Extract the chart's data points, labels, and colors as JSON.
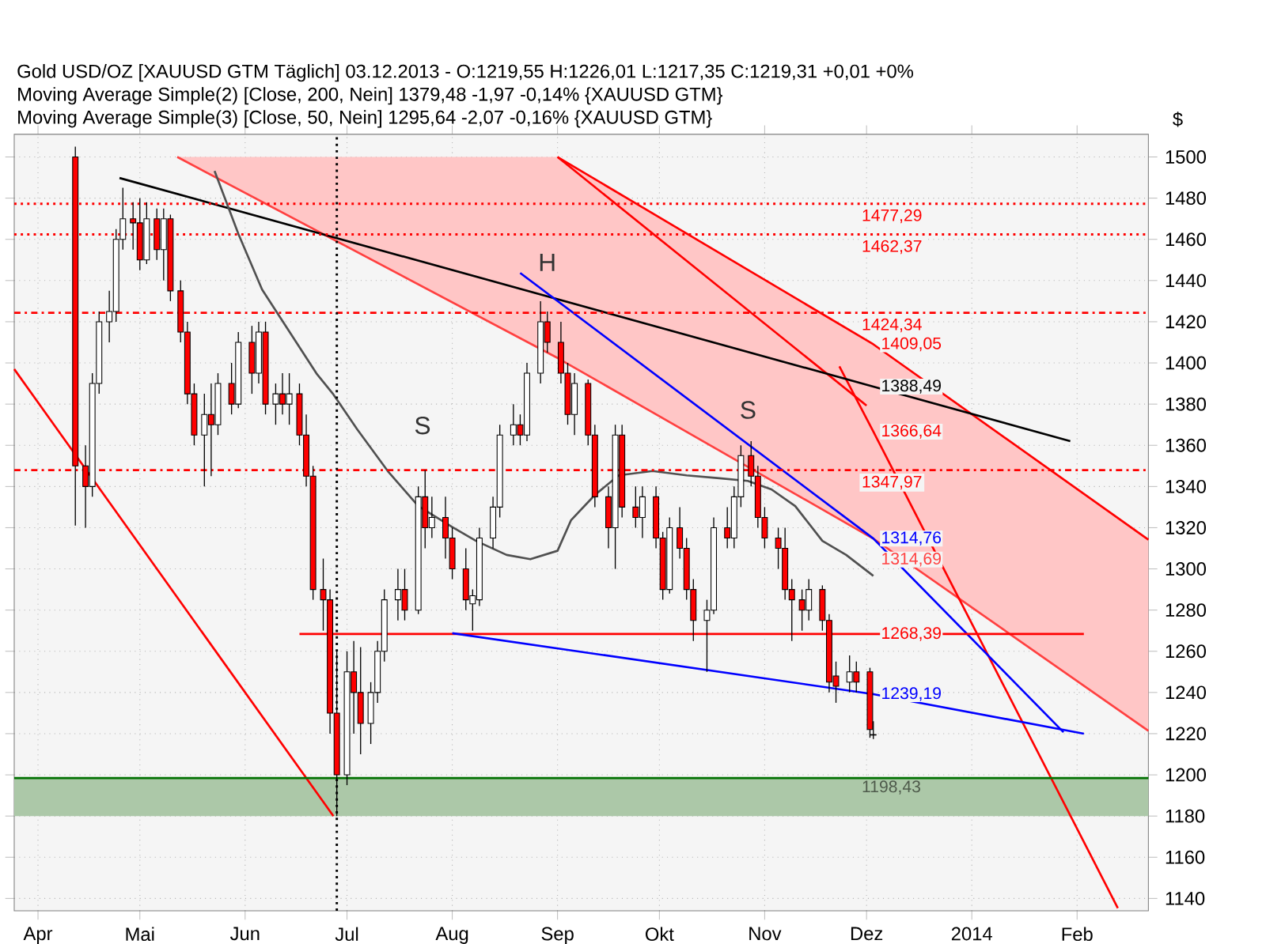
{
  "chart_data": {
    "type": "candlestick",
    "title": "Gold USD/OZ [XAUUSD GTM  Täglich] 03.12.2013 - O:1219,55 H:1226,01 L:1217,35 C:1219,31 +0,01 +0%",
    "ylabel": "$",
    "annotations": [
      "Moving Average Simple(2) [Close, 200, Nein] 1379,48 -1,97 -0,14% {XAUUSD GTM}",
      "Moving Average Simple(3) [Close, 50, Nein] 1295,64 -2,07 -0,16% {XAUUSD GTM}",
      "S",
      "H",
      "S"
    ],
    "xlim": [
      "2013-03-25",
      "2014-02-22"
    ],
    "ylim": [
      1134,
      1511
    ],
    "xticks": [
      {
        "value": "2013-04-01",
        "label": "Apr"
      },
      {
        "value": "2013-05-01",
        "label": "Mai"
      },
      {
        "value": "2013-06-01",
        "label": "Jun"
      },
      {
        "value": "2013-07-01",
        "label": "Jul"
      },
      {
        "value": "2013-08-01",
        "label": "Aug"
      },
      {
        "value": "2013-09-01",
        "label": "Sep"
      },
      {
        "value": "2013-10-01",
        "label": "Okt"
      },
      {
        "value": "2013-11-01",
        "label": "Nov"
      },
      {
        "value": "2013-12-01",
        "label": "Dez"
      },
      {
        "value": "2014-01-01",
        "label": "2014"
      },
      {
        "value": "2014-02-01",
        "label": "Feb"
      }
    ],
    "yticks": [
      1140,
      1160,
      1180,
      1200,
      1220,
      1240,
      1260,
      1280,
      1300,
      1320,
      1340,
      1360,
      1380,
      1400,
      1420,
      1440,
      1460,
      1480,
      1500
    ],
    "grid": true,
    "ref_lines": [
      {
        "axis": "y",
        "value": 1477.29,
        "label": "1477,29",
        "color": "#ff0000",
        "line_style": "dotted"
      },
      {
        "axis": "y",
        "value": 1462.37,
        "label": "1462,37",
        "color": "#ff0000",
        "line_style": "dotted"
      },
      {
        "axis": "y",
        "value": 1424.34,
        "label": "1424,34",
        "color": "#ff0000",
        "line_style": "dashed"
      },
      {
        "axis": "y",
        "value": 1347.97,
        "label": "1347,97",
        "color": "#ff0000",
        "line_style": "dashed"
      },
      {
        "axis": "y",
        "value": 1198.43,
        "color": "#007000",
        "line_style": "solid"
      },
      {
        "axis": "x",
        "value": "2013-06-28",
        "color": "#000000",
        "line_style": "dotted"
      }
    ],
    "bands": [
      {
        "axis": "y",
        "from": 1180,
        "to": 1198.43,
        "label": "1198,43",
        "color": "#acc8a8"
      }
    ],
    "series": [
      {
        "type": "line",
        "color": "#ff4040",
        "x": [
          "2013-05-12",
          "2013-09-01",
          "2013-12-03",
          "2014-02-22"
        ],
        "values": [
          1500,
          1402.4,
          1314.69,
          1221.4
        ],
        "lower": [
          1500,
          1402.4,
          1314.69,
          1221.4
        ],
        "upper": [
          1500,
          1500,
          1409.05,
          1314.2
        ],
        "value_labels": [
          null,
          null,
          "1314,69",
          null
        ]
      },
      {
        "type": "line",
        "color": "#ff0000",
        "x": [
          "2013-09-01",
          "2013-12-03",
          "2014-02-22"
        ],
        "values": [
          1500,
          1409.05,
          1314.2
        ],
        "value_labels": [
          null,
          "1409,05",
          null
        ]
      },
      {
        "type": "line",
        "color": "#ff0000",
        "x": [
          "2013-09-01",
          "2013-12-01"
        ],
        "values": [
          1500,
          1379.3
        ]
      },
      {
        "type": "line",
        "color": "#ff0000",
        "x": [
          "2013-11-23",
          "2013-12-03",
          "2014-02-13"
        ],
        "values": [
          1398.3,
          1366.64,
          1135.3
        ],
        "value_labels": [
          null,
          "1366,64",
          null
        ]
      },
      {
        "type": "line",
        "color": "#ff0000",
        "x": [
          "2013-03-25",
          "2013-06-27"
        ],
        "values": [
          1397,
          1180
        ]
      },
      {
        "type": "line",
        "color": "#000000",
        "x": [
          "2013-04-25",
          "2013-12-03",
          "2014-01-30"
        ],
        "values": [
          1489.8,
          1388.49,
          1362
        ],
        "value_labels": [
          null,
          "1388,49",
          null
        ]
      },
      {
        "type": "line",
        "color": "#0000ff",
        "x": [
          "2013-08-21",
          "2013-12-03",
          "2014-01-28"
        ],
        "values": [
          1443.7,
          1314.76,
          1220.7
        ],
        "value_labels": [
          null,
          "1314,76",
          null
        ]
      },
      {
        "type": "line",
        "color": "#ff0000",
        "x": [
          "2013-06-17",
          "2013-12-03",
          "2014-02-03"
        ],
        "values": [
          1268.39,
          1268.39,
          1268.39
        ],
        "value_labels": [
          null,
          "1268,39",
          null
        ]
      },
      {
        "type": "line",
        "color": "#0000ff",
        "x": [
          "2013-08-01",
          "2013-12-03",
          "2014-02-03"
        ],
        "values": [
          1268.8,
          1239.19,
          1220
        ],
        "value_labels": [
          null,
          "1239,19",
          null
        ]
      },
      {
        "type": "line",
        "color": "#505050",
        "x": [
          "2013-05-23",
          "2013-05-30",
          "2013-06-06",
          "2013-06-14",
          "2013-06-22",
          "2013-06-27",
          "2013-07-04",
          "2013-07-13",
          "2013-07-22",
          "2013-08-01",
          "2013-08-08",
          "2013-08-17",
          "2013-08-24",
          "2013-09-01",
          "2013-09-05",
          "2013-09-12",
          "2013-09-19",
          "2013-09-29",
          "2013-10-09",
          "2013-10-18",
          "2013-10-27",
          "2013-11-03",
          "2013-11-10",
          "2013-11-18",
          "2013-11-25",
          "2013-12-03"
        ],
        "values": [
          1493.2,
          1462.7,
          1435.6,
          1415.3,
          1394.9,
          1384.7,
          1367.8,
          1347.5,
          1330.5,
          1320.3,
          1313.6,
          1306.8,
          1304.7,
          1308.8,
          1323.7,
          1335.9,
          1345.4,
          1347.5,
          1345.4,
          1344.1,
          1342.7,
          1338.6,
          1330.5,
          1313.6,
          1306.8,
          1296.6
        ]
      },
      {
        "colors": [
          "#ff0000",
          "#ff0000",
          "#ffffff",
          "#ffffff",
          "#ffffff",
          "#ffffff",
          "#ffffff",
          "#ff0000",
          "#ff0000",
          "#ffffff",
          "#ff0000",
          "#ffffff",
          "#ff0000",
          "#ff0000",
          "#ff0000",
          "#ff0000",
          "#ffffff",
          "#ff0000",
          "#ffffff",
          "#ff0000",
          "#ffffff",
          "#ff0000",
          "#ffffff",
          "#ff0000",
          "#ffffff",
          "#ff0000",
          "#ffffff",
          "#ff0000",
          "#ff0000",
          "#ff0000",
          "#ff0000",
          "#ff0000",
          "#ff0000",
          "#ffffff",
          "#ff0000",
          "#ff0000",
          "#ffffff",
          "#ffffff",
          "#ffffff",
          "#ffffff",
          "#ff0000",
          "#ffffff",
          "#ff0000",
          "#ffffff",
          "#ff0000",
          "#ff0000",
          "#ff0000",
          "#ffffff",
          "#ffffff",
          "#ffffff",
          "#ffffff",
          "#ffffff",
          "#ff0000",
          "#ffffff",
          "#ffffff",
          "#ff0000",
          "#ff0000",
          "#ff0000",
          "#ffffff",
          "#ff0000",
          "#ff0000",
          "#ff0000",
          "#ffffff",
          "#ff0000",
          "#ff0000",
          "#ffffff",
          "#ff0000",
          "#ff0000",
          "#ffffff",
          "#ff0000",
          "#ff0000",
          "#ff0000",
          "#ffffff",
          "#ffffff",
          "#ff0000",
          "#ffffff",
          "#ffffff",
          "#ff0000",
          "#ff0000",
          "#ff0000",
          "#ff0000",
          "#ff0000",
          "#ff0000",
          "#ff0000",
          "#ffffff",
          "#ff0000",
          "#ff0000",
          "#ff0000",
          "#ffffff",
          "#ff0000",
          "#ff0000",
          "#ff0000"
        ],
        "x": [
          "2013-04-12",
          "2013-04-15",
          "2013-04-17",
          "2013-04-19",
          "2013-04-22",
          "2013-04-24",
          "2013-04-26",
          "2013-04-29",
          "2013-05-01",
          "2013-05-03",
          "2013-05-06",
          "2013-05-08",
          "2013-05-10",
          "2013-05-13",
          "2013-05-15",
          "2013-05-17",
          "2013-05-20",
          "2013-05-22",
          "2013-05-24",
          "2013-05-28",
          "2013-05-30",
          "2013-06-03",
          "2013-06-05",
          "2013-06-07",
          "2013-06-10",
          "2013-06-12",
          "2013-06-14",
          "2013-06-17",
          "2013-06-19",
          "2013-06-21",
          "2013-06-24",
          "2013-06-26",
          "2013-06-28",
          "2013-07-01",
          "2013-07-03",
          "2013-07-05",
          "2013-07-08",
          "2013-07-10",
          "2013-07-12",
          "2013-07-16",
          "2013-07-18",
          "2013-07-22",
          "2013-07-24",
          "2013-07-26",
          "2013-07-30",
          "2013-08-01",
          "2013-08-05",
          "2013-08-07",
          "2013-08-09",
          "2013-08-13",
          "2013-08-15",
          "2013-08-19",
          "2013-08-21",
          "2013-08-23",
          "2013-08-27",
          "2013-08-29",
          "2013-09-02",
          "2013-09-04",
          "2013-09-06",
          "2013-09-10",
          "2013-09-12",
          "2013-09-16",
          "2013-09-18",
          "2013-09-20",
          "2013-09-24",
          "2013-09-26",
          "2013-09-30",
          "2013-10-02",
          "2013-10-04",
          "2013-10-07",
          "2013-10-09",
          "2013-10-11",
          "2013-10-15",
          "2013-10-17",
          "2013-10-21",
          "2013-10-23",
          "2013-10-25",
          "2013-10-28",
          "2013-10-30",
          "2013-11-01",
          "2013-11-05",
          "2013-11-07",
          "2013-11-09",
          "2013-11-12",
          "2013-11-14",
          "2013-11-18",
          "2013-11-20",
          "2013-11-22",
          "2013-11-26",
          "2013-11-28",
          "2013-12-02",
          "2013-12-03"
        ],
        "ohlc": [
          [
            1500,
            1505,
            1321,
            1350
          ],
          [
            1350,
            1360,
            1320,
            1340
          ],
          [
            1340,
            1395,
            1335,
            1390
          ],
          [
            1390,
            1425,
            1385,
            1420
          ],
          [
            1420,
            1435,
            1410,
            1425
          ],
          [
            1425,
            1465,
            1420,
            1460
          ],
          [
            1460,
            1485,
            1455,
            1470
          ],
          [
            1470,
            1478,
            1455,
            1468
          ],
          [
            1468,
            1480,
            1445,
            1450
          ],
          [
            1450,
            1478,
            1448,
            1470
          ],
          [
            1470,
            1475,
            1450,
            1455
          ],
          [
            1455,
            1475,
            1440,
            1470
          ],
          [
            1470,
            1472,
            1430,
            1435
          ],
          [
            1435,
            1440,
            1410,
            1415
          ],
          [
            1415,
            1420,
            1380,
            1385
          ],
          [
            1385,
            1390,
            1360,
            1365
          ],
          [
            1365,
            1385,
            1340,
            1375
          ],
          [
            1375,
            1390,
            1345,
            1370
          ],
          [
            1370,
            1395,
            1365,
            1390
          ],
          [
            1390,
            1400,
            1375,
            1380
          ],
          [
            1380,
            1415,
            1378,
            1410
          ],
          [
            1410,
            1418,
            1385,
            1395
          ],
          [
            1395,
            1420,
            1390,
            1415
          ],
          [
            1415,
            1420,
            1375,
            1380
          ],
          [
            1380,
            1390,
            1370,
            1385
          ],
          [
            1385,
            1395,
            1375,
            1380
          ],
          [
            1380,
            1395,
            1370,
            1385
          ],
          [
            1385,
            1390,
            1360,
            1365
          ],
          [
            1365,
            1375,
            1340,
            1345
          ],
          [
            1345,
            1350,
            1285,
            1290
          ],
          [
            1290,
            1305,
            1270,
            1285
          ],
          [
            1285,
            1290,
            1220,
            1230
          ],
          [
            1230,
            1260,
            1180,
            1200
          ],
          [
            1200,
            1260,
            1195,
            1250
          ],
          [
            1250,
            1265,
            1220,
            1240
          ],
          [
            1240,
            1262,
            1210,
            1225
          ],
          [
            1225,
            1245,
            1215,
            1240
          ],
          [
            1240,
            1265,
            1235,
            1260
          ],
          [
            1260,
            1290,
            1255,
            1285
          ],
          [
            1285,
            1300,
            1275,
            1290
          ],
          [
            1290,
            1300,
            1275,
            1280
          ],
          [
            1280,
            1340,
            1278,
            1335
          ],
          [
            1335,
            1348,
            1310,
            1320
          ],
          [
            1320,
            1335,
            1315,
            1325
          ],
          [
            1325,
            1335,
            1305,
            1315
          ],
          [
            1315,
            1320,
            1295,
            1300
          ],
          [
            1300,
            1310,
            1280,
            1285
          ],
          [
            1283,
            1290,
            1270,
            1287
          ],
          [
            1285,
            1320,
            1282,
            1315
          ],
          [
            1315,
            1335,
            1310,
            1330
          ],
          [
            1330,
            1370,
            1325,
            1365
          ],
          [
            1365,
            1380,
            1360,
            1370
          ],
          [
            1370,
            1375,
            1360,
            1365
          ],
          [
            1365,
            1400,
            1362,
            1395
          ],
          [
            1395,
            1430,
            1390,
            1420
          ],
          [
            1420,
            1425,
            1405,
            1410
          ],
          [
            1410,
            1420,
            1390,
            1395
          ],
          [
            1395,
            1400,
            1370,
            1375
          ],
          [
            1375,
            1395,
            1365,
            1390
          ],
          [
            1390,
            1392,
            1360,
            1365
          ],
          [
            1365,
            1370,
            1330,
            1335
          ],
          [
            1335,
            1340,
            1310,
            1320
          ],
          [
            1320,
            1370,
            1300,
            1365
          ],
          [
            1365,
            1370,
            1325,
            1330
          ],
          [
            1330,
            1340,
            1320,
            1325
          ],
          [
            1325,
            1340,
            1315,
            1335
          ],
          [
            1335,
            1340,
            1310,
            1315
          ],
          [
            1315,
            1318,
            1285,
            1290
          ],
          [
            1290,
            1325,
            1288,
            1320
          ],
          [
            1320,
            1330,
            1305,
            1310
          ],
          [
            1310,
            1315,
            1285,
            1290
          ],
          [
            1290,
            1295,
            1265,
            1275
          ],
          [
            1275,
            1285,
            1250,
            1280
          ],
          [
            1280,
            1325,
            1278,
            1320
          ],
          [
            1320,
            1330,
            1310,
            1315
          ],
          [
            1315,
            1340,
            1310,
            1335
          ],
          [
            1335,
            1360,
            1330,
            1355
          ],
          [
            1355,
            1362,
            1340,
            1345
          ],
          [
            1345,
            1350,
            1320,
            1325
          ],
          [
            1325,
            1330,
            1310,
            1315
          ],
          [
            1315,
            1320,
            1300,
            1310
          ],
          [
            1310,
            1320,
            1285,
            1290
          ],
          [
            1290,
            1295,
            1265,
            1285
          ],
          [
            1285,
            1290,
            1270,
            1280
          ],
          [
            1280,
            1295,
            1275,
            1290
          ],
          [
            1290,
            1292,
            1270,
            1275
          ],
          [
            1275,
            1278,
            1240,
            1245
          ],
          [
            1248,
            1255,
            1235,
            1243
          ],
          [
            1245,
            1258,
            1240,
            1250
          ],
          [
            1250,
            1255,
            1240,
            1245
          ],
          [
            1250,
            1252,
            1218,
            1222
          ],
          [
            1219.55,
            1226.01,
            1217.35,
            1219.31
          ]
        ]
      }
    ]
  }
}
